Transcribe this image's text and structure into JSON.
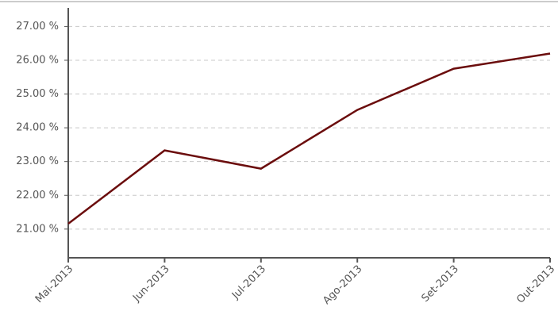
{
  "chart_data": {
    "type": "line",
    "categories": [
      "Mai-2013",
      "Jun-2013",
      "Jul-2013",
      "Ago-2013",
      "Set-2013",
      "Out-2013"
    ],
    "series": [
      {
        "color": "#6b0d0d",
        "values": [
          21.16,
          23.33,
          22.79,
          24.53,
          25.75,
          26.2
        ]
      }
    ],
    "ylim": [
      20.15,
      27.55
    ],
    "yticks": [
      {
        "value": 21,
        "label": "21.00 %"
      },
      {
        "value": 22,
        "label": "22.00 %"
      },
      {
        "value": 23,
        "label": "23.00 %"
      },
      {
        "value": 24,
        "label": "24.00 %"
      },
      {
        "value": 25,
        "label": "25.00 %"
      },
      {
        "value": 26,
        "label": "26.00 %"
      },
      {
        "value": 27,
        "label": "27.00 %"
      }
    ],
    "grid": true
  }
}
